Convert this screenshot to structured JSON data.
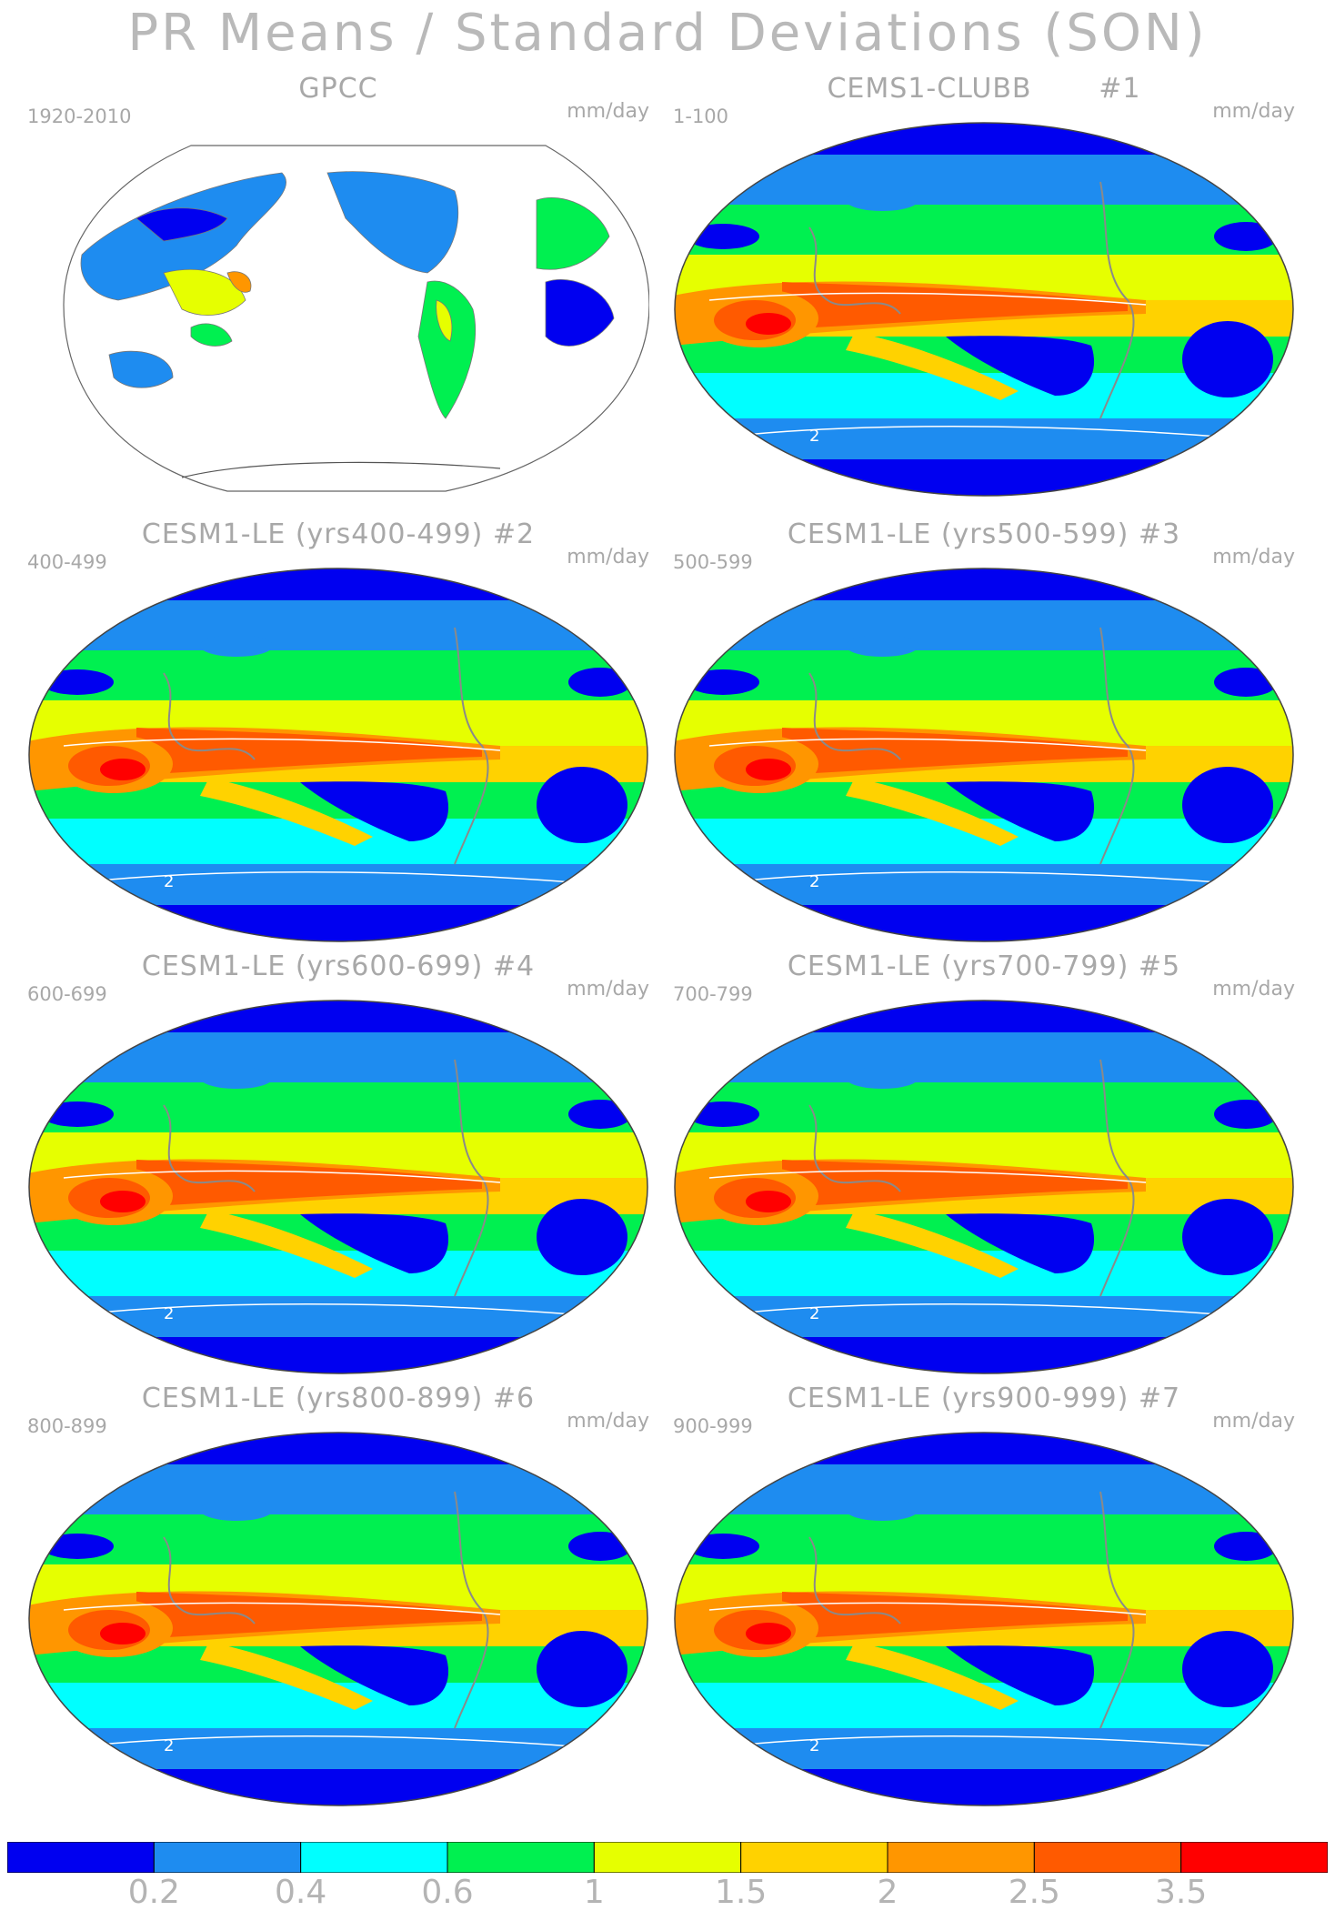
{
  "title": "PR Means / Standard Deviations (SON)",
  "units": "mm/day",
  "panels": [
    {
      "name": "GPCC",
      "run": "",
      "years": "1920-2010",
      "type": "obs"
    },
    {
      "name": "CEMS1-CLUBB",
      "run": "#1",
      "years": "1-100",
      "type": "model"
    },
    {
      "name": "CESM1-LE (yrs400-499)",
      "run": "#2",
      "years": "400-499",
      "type": "model"
    },
    {
      "name": "CESM1-LE (yrs500-599)",
      "run": "#3",
      "years": "500-599",
      "type": "model"
    },
    {
      "name": "CESM1-LE (yrs600-699)",
      "run": "#4",
      "years": "600-699",
      "type": "model"
    },
    {
      "name": "CESM1-LE (yrs700-799)",
      "run": "#5",
      "years": "700-799",
      "type": "model"
    },
    {
      "name": "CESM1-LE (yrs800-899)",
      "run": "#6",
      "years": "800-899",
      "type": "model"
    },
    {
      "name": "CESM1-LE (yrs900-999)",
      "run": "#7",
      "years": "900-999",
      "type": "model"
    }
  ],
  "contour_label": "2",
  "colorbar": {
    "colors": [
      "#0000f0",
      "#1e8cf0",
      "#00ffff",
      "#00f050",
      "#e6ff00",
      "#ffd200",
      "#ff9600",
      "#ff5a00",
      "#ff0000"
    ],
    "labels": [
      "0.2",
      "0.4",
      "0.6",
      "1",
      "1.5",
      "2",
      "2.5",
      "3.5"
    ]
  }
}
